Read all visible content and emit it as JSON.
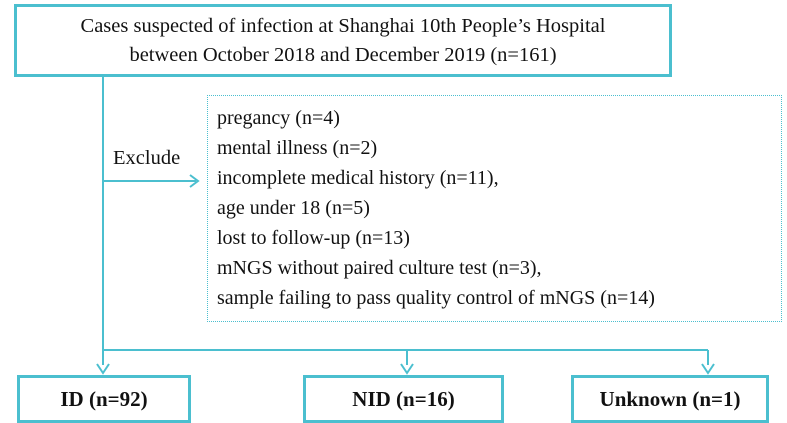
{
  "diagram": {
    "top_box": {
      "line1": "Cases suspected of  infection at Shanghai 10th People’s Hospital",
      "line2": "between October 2018 and December 2019 (n=161)"
    },
    "exclude_label": "Exclude",
    "exclusions": [
      "pregancy (n=4)",
      "mental illness (n=2)",
      "incomplete medical history (n=11),",
      "age under 18 (n=5)",
      "lost to follow-up (n=13)",
      "mNGS without paired culture test (n=3),",
      "sample failing to pass quality control of mNGS (n=14)"
    ],
    "outcomes": {
      "id": "ID (n=92)",
      "nid": "NID (n=16)",
      "unknown": "Unknown (n=1)"
    },
    "colors": {
      "line": "#4bbfcf",
      "text": "#111111"
    }
  }
}
